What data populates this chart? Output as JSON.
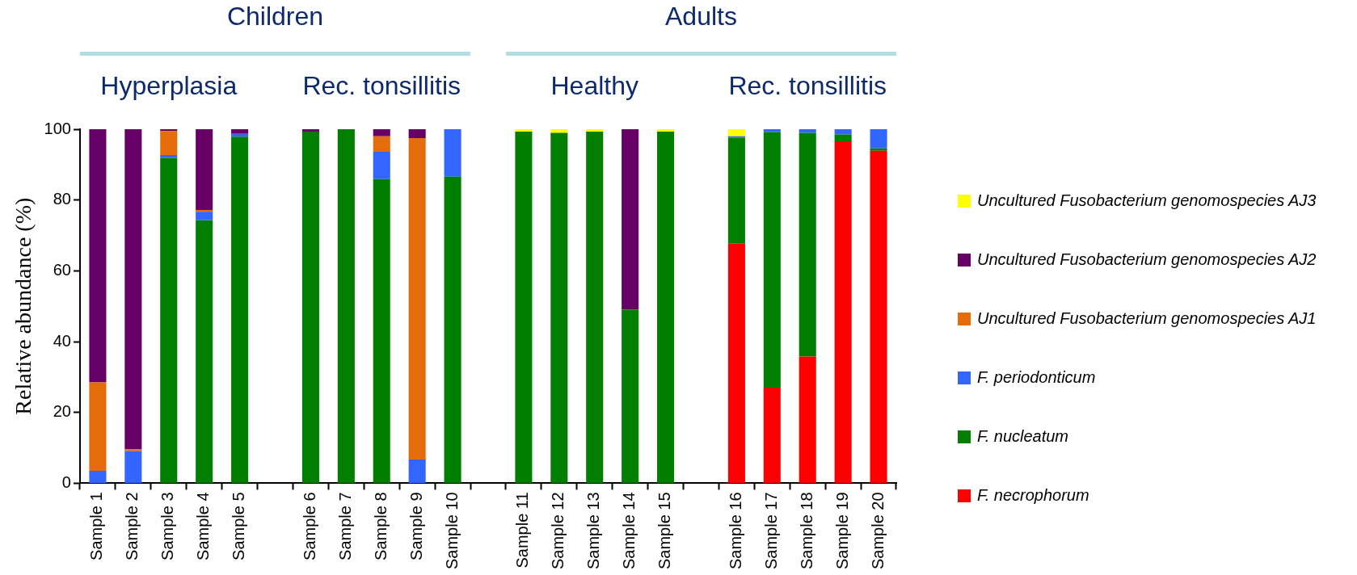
{
  "chart_data": {
    "type": "bar",
    "stacked": true,
    "ylabel": "Relative abundance (%)",
    "ylim": [
      0,
      100
    ],
    "yticks": [
      0,
      20,
      40,
      60,
      80,
      100
    ],
    "legend": "right",
    "annotations": [
      "Children",
      "Adults",
      "Hyperplasia",
      "Rec. tonsillitis",
      "Healthy",
      "Rec. tonsillitis"
    ],
    "categories": [
      "Sample 1",
      "Sample 2",
      "Sample 3",
      "Sample 4",
      "Sample 5",
      null,
      "Sample 6",
      "Sample 7",
      "Sample 8",
      "Sample 9",
      "Sample 10",
      null,
      "Sample 11",
      "Sample 12",
      "Sample 13",
      "Sample 14",
      "Sample 15",
      null,
      "Sample 16",
      "Sample 17",
      "Sample 18",
      "Sample 19",
      "Sample 20"
    ],
    "series": [
      {
        "name": "F. necrophorum",
        "color": "#ff0000",
        "values": [
          0,
          0,
          0,
          0,
          0,
          null,
          0,
          0,
          0,
          0,
          0,
          null,
          0,
          0,
          0,
          0,
          0,
          null,
          67.8,
          27.0,
          35.8,
          96.6,
          93.9
        ]
      },
      {
        "name": "F. nucleatum",
        "color": "#007f00",
        "values": [
          0,
          0,
          91.9,
          74.3,
          97.9,
          null,
          99.3,
          100,
          85.9,
          0,
          86.6,
          null,
          99.3,
          99.0,
          99.3,
          49.0,
          99.3,
          null,
          29.8,
          72.2,
          63.2,
          1.9,
          0.7
        ]
      },
      {
        "name": "F. periodonticum",
        "color": "#3366ff",
        "values": [
          3.5,
          9.1,
          0.8,
          2.4,
          0.8,
          null,
          0,
          0,
          7.7,
          6.7,
          13.4,
          null,
          0,
          0,
          0,
          0,
          0,
          null,
          0.4,
          0.8,
          1.0,
          1.5,
          5.4
        ]
      },
      {
        "name": "Uncultured Fusobacterium genomospecies AJ1",
        "color": "#e46c0a",
        "values": [
          25.0,
          0.5,
          6.8,
          0.5,
          0,
          null,
          0,
          0,
          4.4,
          90.8,
          0,
          null,
          0,
          0,
          0,
          0,
          0,
          null,
          0,
          0,
          0,
          0,
          0
        ]
      },
      {
        "name": "Uncultured Fusobacterium genomospecies AJ2",
        "color": "#660066",
        "values": [
          71.5,
          90.4,
          0.5,
          22.8,
          1.3,
          null,
          0.7,
          0,
          2.0,
          2.5,
          0,
          null,
          0,
          0,
          0,
          51.0,
          0,
          null,
          0,
          0,
          0,
          0,
          0
        ]
      },
      {
        "name": "Uncultured Fusobacterium genomospecies AJ3",
        "color": "#ffff00",
        "values": [
          0,
          0,
          0,
          0,
          0,
          null,
          0,
          0,
          0,
          0,
          0,
          null,
          0.7,
          1.0,
          0.7,
          0,
          0.7,
          null,
          2.0,
          0,
          0,
          0,
          0
        ]
      }
    ]
  }
}
